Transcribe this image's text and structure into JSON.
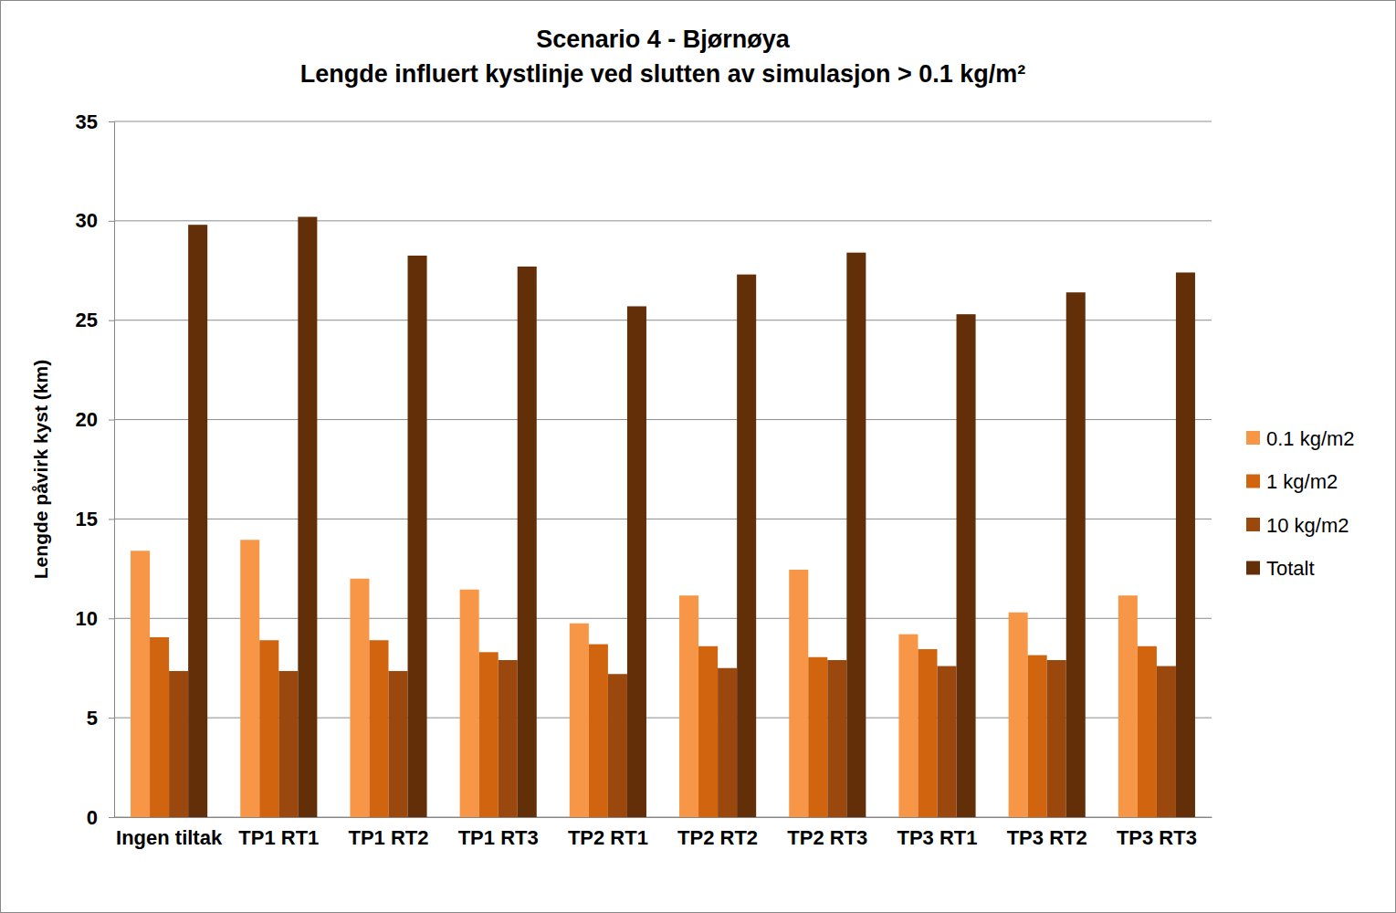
{
  "chart_data": {
    "type": "bar",
    "title": "Scenario 4 - Bjørnøya\nLengde influert kystlinje ved slutten av simulasjon > 0.1 kg/m²",
    "y_label": "Lengde påvirk kyst (km)",
    "categories": [
      "Ingen tiltak",
      "TP1 RT1",
      "TP1 RT2",
      "TP1 RT3",
      "TP2 RT1",
      "TP2 RT2",
      "TP2 RT3",
      "TP3 RT1",
      "TP3 RT2",
      "TP3 RT3"
    ],
    "series": [
      {
        "name": "0.1 kg/m2",
        "color": "#f79646",
        "values": [
          13.4,
          13.95,
          12.0,
          11.45,
          9.75,
          11.15,
          12.45,
          9.2,
          10.3,
          11.15
        ]
      },
      {
        "name": "1 kg/m2",
        "color": "#d0640f",
        "values": [
          9.05,
          8.9,
          8.9,
          8.3,
          8.7,
          8.6,
          8.05,
          8.45,
          8.15,
          8.6
        ]
      },
      {
        "name": "10 kg/m2",
        "color": "#9a480e",
        "values": [
          7.35,
          7.35,
          7.35,
          7.9,
          7.2,
          7.5,
          7.9,
          7.6,
          7.9,
          7.6
        ]
      },
      {
        "name": "Totalt",
        "color": "#632f08",
        "values": [
          29.8,
          30.2,
          28.25,
          27.7,
          25.7,
          27.3,
          28.4,
          25.3,
          26.4,
          27.4
        ]
      }
    ],
    "ylim": [
      0,
      35
    ],
    "yticks": [
      0,
      5,
      10,
      15,
      20,
      25,
      30,
      35
    ],
    "grid": true,
    "legend": "right"
  }
}
